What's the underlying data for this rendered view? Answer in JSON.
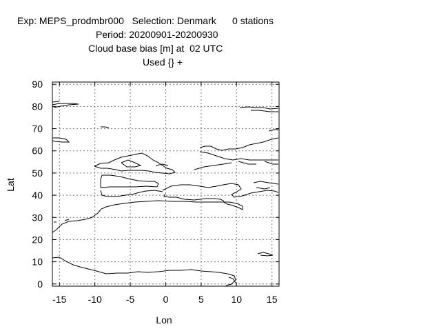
{
  "header": {
    "line1": "Exp: MEPS_prodmbr000   Selection: Denmark      0 stations",
    "line2": "Period: 20200901-20200930",
    "line3": "Cloud base bias [m] at  02 UTC",
    "line4": "Used {} +"
  },
  "axes": {
    "xlabel": "Lon",
    "ylabel": "Lat",
    "xlim": [
      -16,
      16
    ],
    "ylim": [
      -1,
      91
    ],
    "xticks": [
      -15,
      -10,
      -5,
      0,
      5,
      10,
      15
    ],
    "yticks": [
      0,
      10,
      20,
      30,
      40,
      50,
      60,
      70,
      80,
      90
    ],
    "grid": true,
    "grid_style": "dotted"
  },
  "map": {
    "coastline_color": "#000000",
    "stations_shown": 0
  }
}
